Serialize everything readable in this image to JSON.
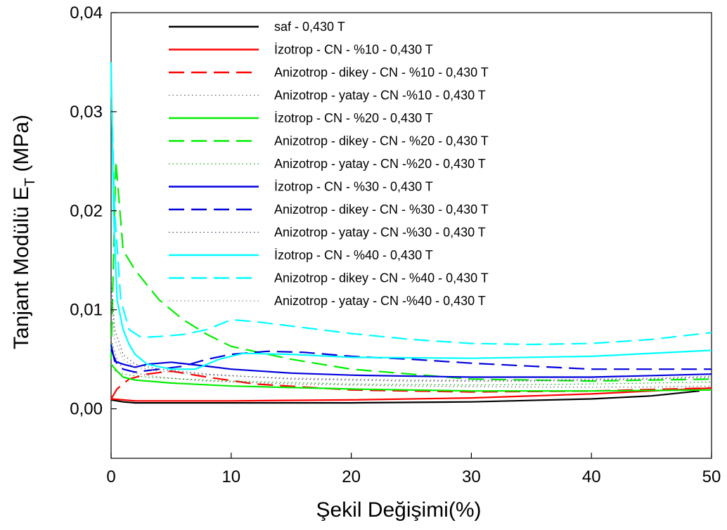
{
  "chart_data": {
    "type": "line",
    "xlabel": "Şekil Değişimi(%)",
    "ylabel": "Tanjant Modülü E",
    "ylabel_sub": "T",
    "ylabel_unit": " (MPa)",
    "xlim": [
      0,
      50
    ],
    "ylim": [
      -0.005,
      0.04
    ],
    "x_ticks": [
      0,
      10,
      20,
      30,
      40,
      50
    ],
    "x_tick_labels": [
      "0",
      "10",
      "20",
      "30",
      "40",
      "50"
    ],
    "y_ticks": [
      0.0,
      0.01,
      0.02,
      0.03,
      0.04
    ],
    "y_tick_labels": [
      "0,00",
      "0,01",
      "0,02",
      "0,03",
      "0,04"
    ],
    "grid": false,
    "legend_position": "top-center",
    "series": [
      {
        "name": "saf - 0,430 T",
        "color": "#000000",
        "style": "solid",
        "x": [
          0,
          1,
          2,
          5,
          10,
          20,
          30,
          40,
          45,
          49
        ],
        "y": [
          0.0009,
          0.0007,
          0.0006,
          0.0006,
          0.0006,
          0.0006,
          0.0007,
          0.001,
          0.0013,
          0.0018
        ]
      },
      {
        "name": "İzotrop - CN - %10 - 0,430 T",
        "color": "#ff0000",
        "style": "solid",
        "x": [
          0,
          1,
          2,
          5,
          10,
          20,
          30,
          40,
          50
        ],
        "y": [
          0.001,
          0.0009,
          0.0008,
          0.0008,
          0.0008,
          0.0009,
          0.0011,
          0.0015,
          0.0021
        ]
      },
      {
        "name": "Anizotrop - dikey - CN - %10 - 0,430 T",
        "color": "#ff0000",
        "style": "dash",
        "x": [
          0,
          0.5,
          1.5,
          3,
          5,
          8,
          12,
          20,
          30,
          40,
          50
        ],
        "y": [
          0.001,
          0.002,
          0.003,
          0.0035,
          0.0038,
          0.0032,
          0.0025,
          0.0019,
          0.0017,
          0.0018,
          0.0021
        ]
      },
      {
        "name": "Anizotrop - yatay - CN -%10 - 0,430 T",
        "color": "#666666",
        "style": "dot",
        "x": [
          0,
          0.5,
          1,
          2,
          4,
          8,
          15,
          25,
          35,
          45,
          50
        ],
        "y": [
          0.007,
          0.005,
          0.004,
          0.0036,
          0.0032,
          0.0028,
          0.0025,
          0.0023,
          0.0022,
          0.0022,
          0.0023
        ]
      },
      {
        "name": "İzotrop - CN - %20 - 0,430 T",
        "color": "#00ee00",
        "style": "solid",
        "x": [
          0,
          0.5,
          1,
          2,
          5,
          10,
          20,
          30,
          40,
          50
        ],
        "y": [
          0.0045,
          0.0038,
          0.0032,
          0.0029,
          0.0026,
          0.0023,
          0.002,
          0.0018,
          0.0018,
          0.0019
        ]
      },
      {
        "name": "Anizotrop - dikey - CN - %20 - 0,430 T",
        "color": "#00ee00",
        "style": "dash",
        "x": [
          0,
          0.4,
          1,
          2,
          4,
          6,
          8,
          10,
          15,
          20,
          30,
          40,
          50
        ],
        "y": [
          0.005,
          0.025,
          0.016,
          0.014,
          0.011,
          0.009,
          0.0075,
          0.0063,
          0.005,
          0.004,
          0.003,
          0.0028,
          0.003
        ]
      },
      {
        "name": "Anizotrop - yatay - CN -%20 - 0,430 T",
        "color": "#00aa00",
        "style": "dot",
        "x": [
          0,
          1,
          3,
          6,
          10,
          20,
          30,
          40,
          50
        ],
        "y": [
          0.004,
          0.0035,
          0.0032,
          0.003,
          0.0028,
          0.0025,
          0.0024,
          0.0025,
          0.0027
        ]
      },
      {
        "name": "İzotrop - CN - %30 - 0,430 T",
        "color": "#0000dd",
        "style": "solid",
        "x": [
          0,
          0.3,
          1,
          2,
          3,
          5,
          8,
          10,
          15,
          20,
          30,
          40,
          50
        ],
        "y": [
          0.0065,
          0.0048,
          0.0045,
          0.0042,
          0.0045,
          0.0047,
          0.0043,
          0.004,
          0.0036,
          0.0034,
          0.0032,
          0.0032,
          0.0035
        ]
      },
      {
        "name": "Anizotrop - dikey - CN - %30 - 0,430 T",
        "color": "#0000dd",
        "style": "dash",
        "x": [
          0,
          0.5,
          1,
          2,
          4,
          6,
          8,
          10,
          13,
          16,
          20,
          25,
          30,
          40,
          50
        ],
        "y": [
          0.006,
          0.0045,
          0.004,
          0.0037,
          0.004,
          0.0043,
          0.005,
          0.0055,
          0.0058,
          0.0057,
          0.0053,
          0.005,
          0.0046,
          0.004,
          0.004
        ]
      },
      {
        "name": "Anizotrop - yatay - CN -%30 - 0,430 T",
        "color": "#444466",
        "style": "dot",
        "x": [
          0,
          0.3,
          1,
          2,
          4,
          8,
          15,
          25,
          35,
          45,
          50
        ],
        "y": [
          0.013,
          0.008,
          0.0055,
          0.0045,
          0.004,
          0.0035,
          0.003,
          0.0028,
          0.0028,
          0.003,
          0.0032
        ]
      },
      {
        "name": "İzotrop - CN - %40 - 0,430 T",
        "color": "#00ffff",
        "style": "solid",
        "x": [
          0,
          0.2,
          0.5,
          1,
          1.5,
          2,
          3,
          5,
          7,
          9,
          11,
          15,
          20,
          30,
          40,
          50
        ],
        "y": [
          0.035,
          0.02,
          0.011,
          0.008,
          0.0065,
          0.0055,
          0.0045,
          0.004,
          0.004,
          0.005,
          0.0056,
          0.0055,
          0.0052,
          0.0051,
          0.0053,
          0.0059
        ]
      },
      {
        "name": "Anizotrop - dikey - CN - %40 - 0,430 T",
        "color": "#00ffff",
        "style": "dash",
        "x": [
          0,
          0.3,
          0.8,
          1.5,
          2.5,
          4,
          6,
          8,
          10,
          12,
          16,
          20,
          25,
          30,
          35,
          40,
          45,
          50
        ],
        "y": [
          0.033,
          0.02,
          0.011,
          0.008,
          0.0072,
          0.0073,
          0.0075,
          0.008,
          0.009,
          0.0088,
          0.0082,
          0.0076,
          0.007,
          0.0066,
          0.0065,
          0.0066,
          0.007,
          0.0077
        ]
      },
      {
        "name": "Anizotrop - yatay - CN -%40 - 0,430 T",
        "color": "#888888",
        "style": "dot",
        "x": [
          0,
          0.3,
          1,
          2,
          4,
          8,
          15,
          25,
          35,
          45,
          50
        ],
        "y": [
          0.011,
          0.007,
          0.005,
          0.0042,
          0.0038,
          0.0034,
          0.0031,
          0.0029,
          0.0029,
          0.0031,
          0.0033
        ]
      }
    ]
  }
}
